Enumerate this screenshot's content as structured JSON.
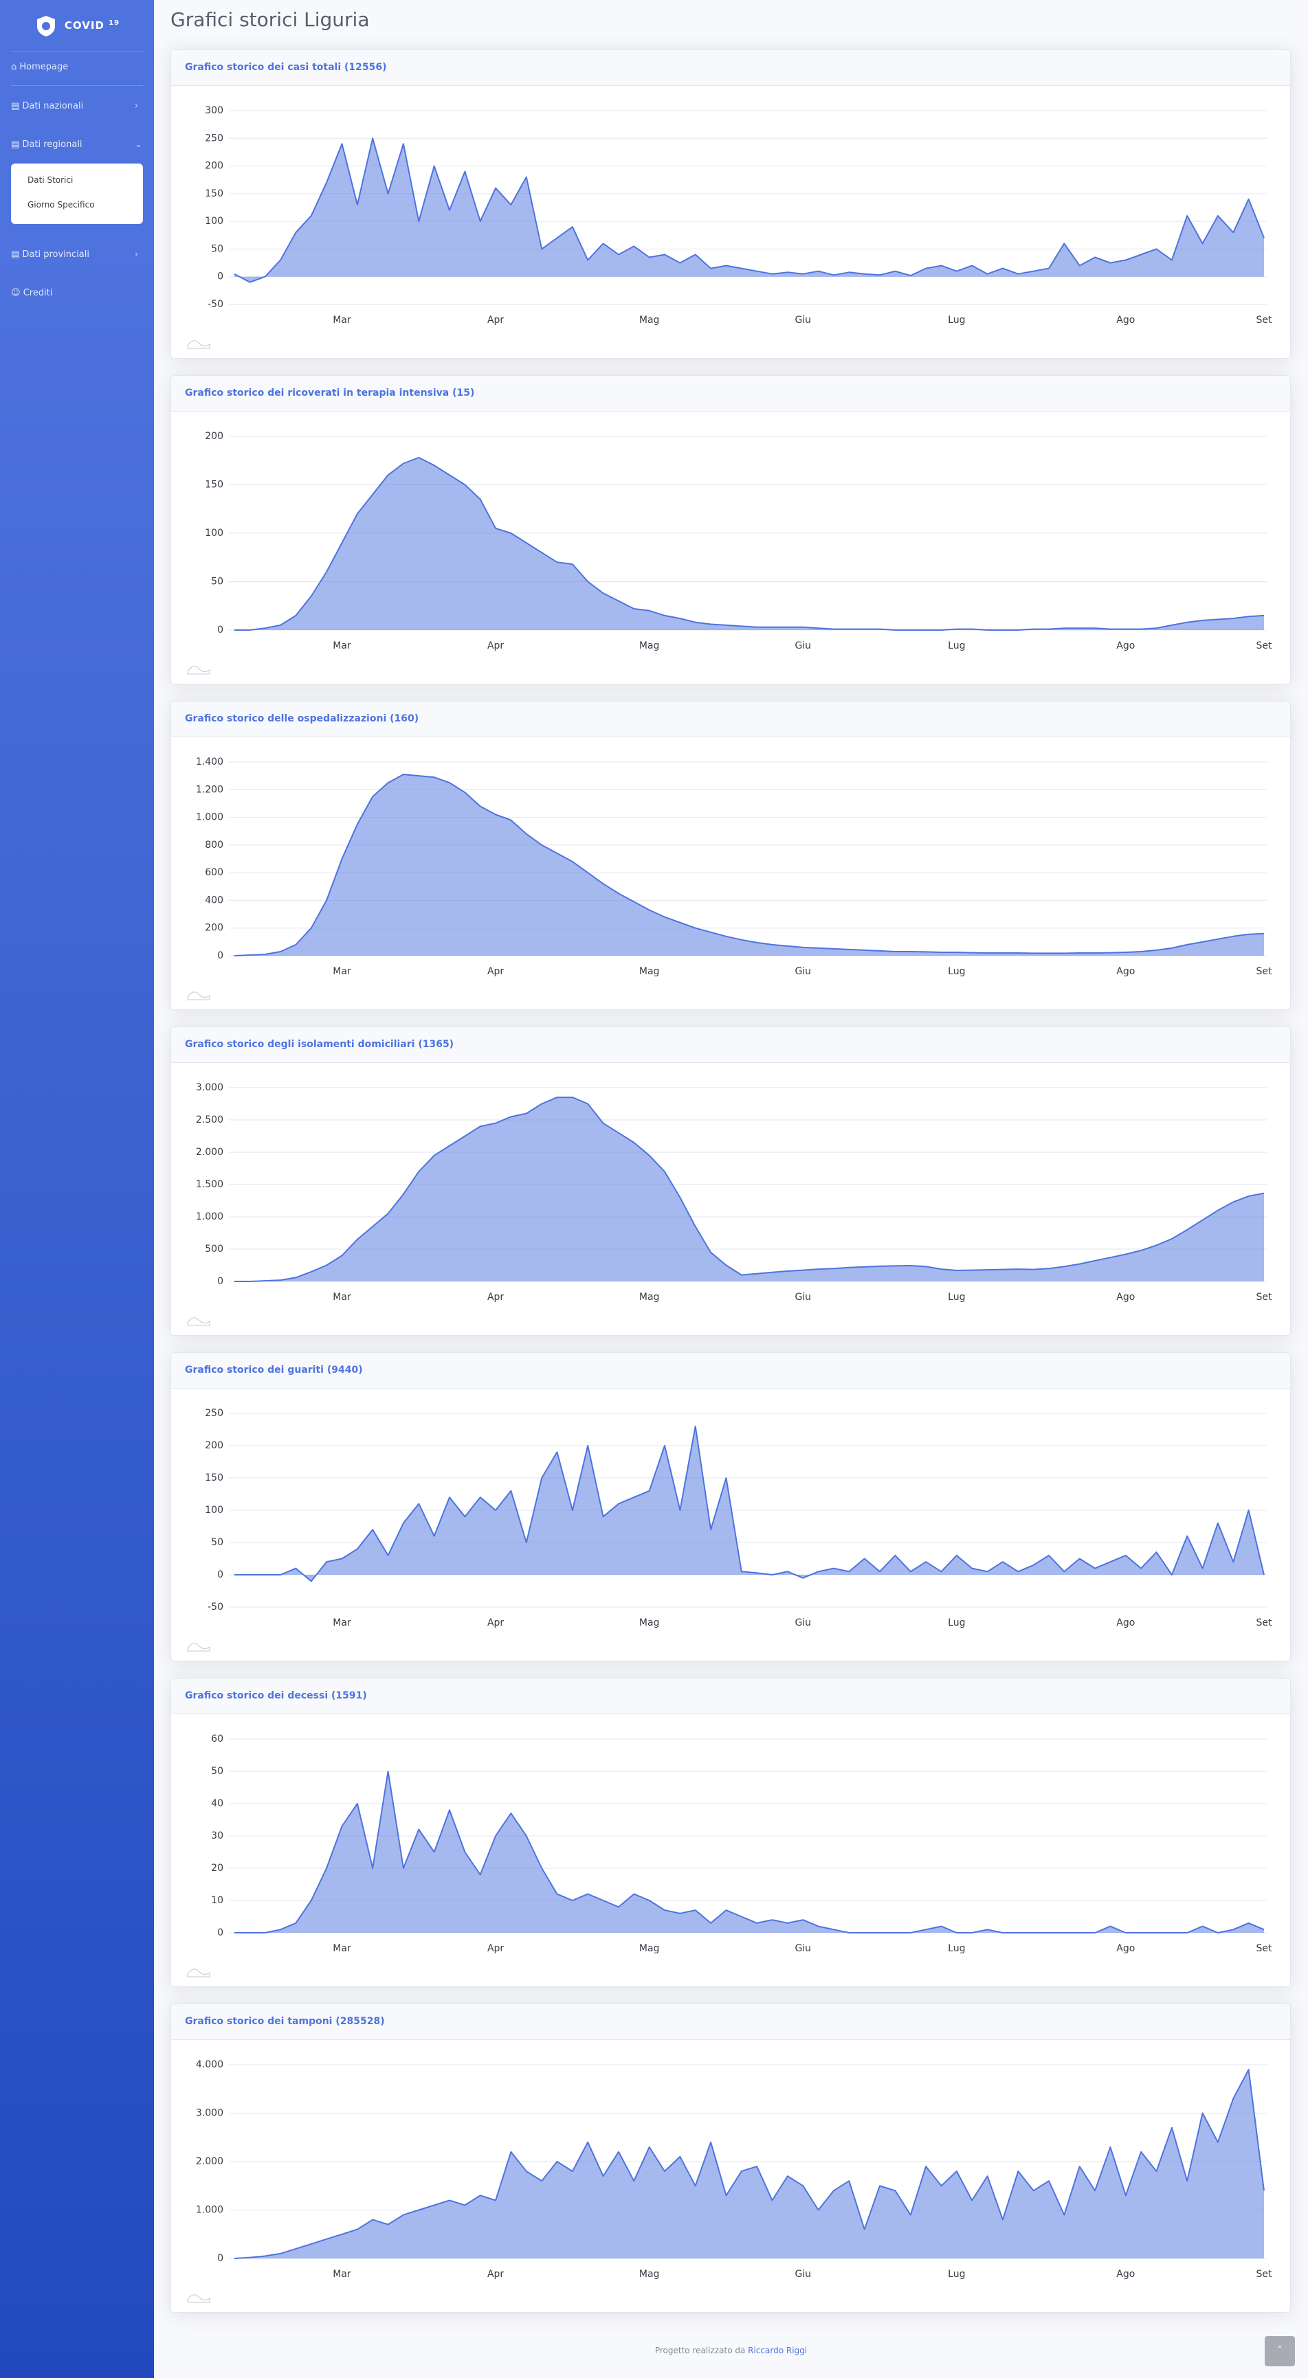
{
  "sidebar": {
    "brand": "COVID",
    "brand_sup": "19",
    "items": [
      "Homepage",
      "Dati nazionali",
      "Dati regionali"
    ],
    "submenu": [
      "Dati Storici",
      "Giorno Specifico"
    ],
    "items2": [
      "Dati provinciali",
      "Crediti"
    ]
  },
  "page_title": "Grafici storici Liguria",
  "footer": {
    "text": "Progetto realizzato da",
    "author": "Riccardo Riggi"
  },
  "chart_data": [
    {
      "type": "line",
      "title": "Grafico storico dei casi totali (12556)",
      "color": "#4e73df",
      "grid": true,
      "categories": [
        null,
        null,
        null,
        null,
        null,
        null,
        null,
        "Mar",
        null,
        null,
        null,
        null,
        null,
        null,
        null,
        null,
        null,
        "Apr",
        null,
        null,
        null,
        null,
        null,
        null,
        null,
        null,
        null,
        "Mag",
        null,
        null,
        null,
        null,
        null,
        null,
        null,
        null,
        null,
        "Giu",
        null,
        null,
        null,
        null,
        null,
        null,
        null,
        null,
        null,
        "Lug",
        null,
        null,
        null,
        null,
        null,
        null,
        null,
        null,
        null,
        null,
        "Ago",
        null,
        null,
        null,
        null,
        null,
        null,
        null,
        null,
        "Set"
      ],
      "values": [
        5,
        -10,
        0,
        30,
        80,
        110,
        170,
        240,
        130,
        250,
        150,
        240,
        100,
        200,
        120,
        190,
        100,
        160,
        130,
        180,
        50,
        70,
        90,
        30,
        60,
        40,
        55,
        35,
        40,
        25,
        40,
        15,
        20,
        15,
        10,
        5,
        8,
        5,
        10,
        3,
        8,
        5,
        3,
        10,
        2,
        15,
        20,
        10,
        20,
        5,
        15,
        5,
        10,
        15,
        60,
        20,
        35,
        25,
        30,
        40,
        50,
        30,
        110,
        60,
        110,
        80,
        140,
        70
      ],
      "ylim": [
        -50,
        300
      ],
      "yticks": [
        -50,
        0,
        50,
        100,
        150,
        200,
        250,
        300
      ]
    },
    {
      "type": "line",
      "title": "Grafico storico dei ricoverati in terapia intensiva (15)",
      "color": "#4e73df",
      "grid": true,
      "categories": [
        null,
        null,
        null,
        null,
        null,
        null,
        null,
        "Mar",
        null,
        null,
        null,
        null,
        null,
        null,
        null,
        null,
        null,
        "Apr",
        null,
        null,
        null,
        null,
        null,
        null,
        null,
        null,
        null,
        "Mag",
        null,
        null,
        null,
        null,
        null,
        null,
        null,
        null,
        null,
        "Giu",
        null,
        null,
        null,
        null,
        null,
        null,
        null,
        null,
        null,
        "Lug",
        null,
        null,
        null,
        null,
        null,
        null,
        null,
        null,
        null,
        null,
        "Ago",
        null,
        null,
        null,
        null,
        null,
        null,
        null,
        null,
        "Set"
      ],
      "values": [
        0,
        0,
        2,
        5,
        15,
        35,
        60,
        90,
        120,
        140,
        160,
        172,
        178,
        170,
        160,
        150,
        135,
        105,
        100,
        90,
        80,
        70,
        68,
        50,
        38,
        30,
        22,
        20,
        15,
        12,
        8,
        6,
        5,
        4,
        3,
        3,
        3,
        3,
        2,
        1,
        1,
        1,
        1,
        0,
        0,
        0,
        0,
        1,
        1,
        0,
        0,
        0,
        1,
        1,
        2,
        2,
        2,
        1,
        1,
        1,
        2,
        5,
        8,
        10,
        11,
        12,
        14,
        15
      ],
      "ylim": [
        0,
        200
      ],
      "yticks": [
        0,
        50,
        100,
        150,
        200
      ]
    },
    {
      "type": "line",
      "title": "Grafico storico delle ospedalizzazioni (160)",
      "color": "#4e73df",
      "grid": true,
      "categories": [
        null,
        null,
        null,
        null,
        null,
        null,
        null,
        "Mar",
        null,
        null,
        null,
        null,
        null,
        null,
        null,
        null,
        null,
        "Apr",
        null,
        null,
        null,
        null,
        null,
        null,
        null,
        null,
        null,
        "Mag",
        null,
        null,
        null,
        null,
        null,
        null,
        null,
        null,
        null,
        "Giu",
        null,
        null,
        null,
        null,
        null,
        null,
        null,
        null,
        null,
        "Lug",
        null,
        null,
        null,
        null,
        null,
        null,
        null,
        null,
        null,
        null,
        "Ago",
        null,
        null,
        null,
        null,
        null,
        null,
        null,
        null,
        "Set"
      ],
      "values": [
        0,
        5,
        10,
        30,
        80,
        200,
        400,
        700,
        950,
        1150,
        1250,
        1310,
        1300,
        1290,
        1250,
        1180,
        1080,
        1020,
        980,
        880,
        800,
        740,
        680,
        600,
        520,
        450,
        390,
        330,
        280,
        240,
        200,
        170,
        140,
        115,
        95,
        80,
        70,
        60,
        55,
        50,
        45,
        40,
        35,
        30,
        30,
        28,
        25,
        25,
        22,
        20,
        20,
        20,
        18,
        18,
        18,
        20,
        20,
        22,
        25,
        30,
        40,
        55,
        80,
        100,
        120,
        140,
        155,
        160
      ],
      "ylim": [
        0,
        1400
      ],
      "yticks": [
        0,
        200,
        400,
        600,
        800,
        {
          "value": 1000,
          "label": "1.000"
        },
        {
          "value": 1200,
          "label": "1.200"
        },
        {
          "value": 1400,
          "label": "1.400"
        }
      ]
    },
    {
      "type": "line",
      "title": "Grafico storico degli isolamenti domiciliari (1365)",
      "color": "#4e73df",
      "grid": true,
      "categories": [
        null,
        null,
        null,
        null,
        null,
        null,
        null,
        "Mar",
        null,
        null,
        null,
        null,
        null,
        null,
        null,
        null,
        null,
        "Apr",
        null,
        null,
        null,
        null,
        null,
        null,
        null,
        null,
        null,
        "Mag",
        null,
        null,
        null,
        null,
        null,
        null,
        null,
        null,
        null,
        "Giu",
        null,
        null,
        null,
        null,
        null,
        null,
        null,
        null,
        null,
        "Lug",
        null,
        null,
        null,
        null,
        null,
        null,
        null,
        null,
        null,
        null,
        "Ago",
        null,
        null,
        null,
        null,
        null,
        null,
        null,
        null,
        "Set"
      ],
      "values": [
        0,
        0,
        10,
        20,
        60,
        150,
        250,
        400,
        650,
        850,
        1050,
        1350,
        1700,
        1950,
        2100,
        2250,
        2400,
        2450,
        2550,
        2600,
        2750,
        2850,
        2850,
        2750,
        2450,
        2300,
        2150,
        1950,
        1700,
        1300,
        850,
        450,
        250,
        100,
        120,
        140,
        160,
        175,
        190,
        200,
        215,
        225,
        235,
        240,
        245,
        230,
        190,
        170,
        175,
        180,
        185,
        190,
        185,
        200,
        230,
        270,
        320,
        370,
        420,
        480,
        560,
        660,
        800,
        950,
        1100,
        1230,
        1320,
        1365
      ],
      "ylim": [
        0,
        3000
      ],
      "yticks": [
        0,
        500,
        {
          "value": 1000,
          "label": "1.000"
        },
        {
          "value": 1500,
          "label": "1.500"
        },
        {
          "value": 2000,
          "label": "2.000"
        },
        {
          "value": 2500,
          "label": "2.500"
        },
        {
          "value": 3000,
          "label": "3.000"
        }
      ]
    },
    {
      "type": "line",
      "title": "Grafico storico dei guariti (9440)",
      "color": "#4e73df",
      "grid": true,
      "categories": [
        null,
        null,
        null,
        null,
        null,
        null,
        null,
        "Mar",
        null,
        null,
        null,
        null,
        null,
        null,
        null,
        null,
        null,
        "Apr",
        null,
        null,
        null,
        null,
        null,
        null,
        null,
        null,
        null,
        "Mag",
        null,
        null,
        null,
        null,
        null,
        null,
        null,
        null,
        null,
        "Giu",
        null,
        null,
        null,
        null,
        null,
        null,
        null,
        null,
        null,
        "Lug",
        null,
        null,
        null,
        null,
        null,
        null,
        null,
        null,
        null,
        null,
        "Ago",
        null,
        null,
        null,
        null,
        null,
        null,
        null,
        null,
        "Set"
      ],
      "values": [
        0,
        0,
        0,
        0,
        10,
        -10,
        20,
        25,
        40,
        70,
        30,
        80,
        110,
        60,
        120,
        90,
        120,
        100,
        130,
        50,
        150,
        190,
        100,
        200,
        90,
        110,
        120,
        130,
        200,
        100,
        230,
        70,
        150,
        5,
        3,
        0,
        5,
        -5,
        5,
        10,
        5,
        25,
        5,
        30,
        5,
        20,
        5,
        30,
        10,
        5,
        20,
        5,
        15,
        30,
        5,
        25,
        10,
        20,
        30,
        10,
        35,
        0,
        60,
        10,
        80,
        20,
        100,
        0
      ],
      "ylim": [
        -50,
        250
      ],
      "yticks": [
        -50,
        0,
        50,
        100,
        150,
        200,
        250
      ]
    },
    {
      "type": "line",
      "title": "Grafico storico dei decessi (1591)",
      "color": "#4e73df",
      "grid": true,
      "categories": [
        null,
        null,
        null,
        null,
        null,
        null,
        null,
        "Mar",
        null,
        null,
        null,
        null,
        null,
        null,
        null,
        null,
        null,
        "Apr",
        null,
        null,
        null,
        null,
        null,
        null,
        null,
        null,
        null,
        "Mag",
        null,
        null,
        null,
        null,
        null,
        null,
        null,
        null,
        null,
        "Giu",
        null,
        null,
        null,
        null,
        null,
        null,
        null,
        null,
        null,
        "Lug",
        null,
        null,
        null,
        null,
        null,
        null,
        null,
        null,
        null,
        null,
        "Ago",
        null,
        null,
        null,
        null,
        null,
        null,
        null,
        null,
        "Set"
      ],
      "values": [
        0,
        0,
        0,
        1,
        3,
        10,
        20,
        33,
        40,
        20,
        50,
        20,
        32,
        25,
        38,
        25,
        18,
        30,
        37,
        30,
        20,
        12,
        10,
        12,
        10,
        8,
        12,
        10,
        7,
        6,
        7,
        3,
        7,
        5,
        3,
        4,
        3,
        4,
        2,
        1,
        0,
        0,
        0,
        0,
        0,
        1,
        2,
        0,
        0,
        1,
        0,
        0,
        0,
        0,
        0,
        0,
        0,
        2,
        0,
        0,
        0,
        0,
        0,
        2,
        0,
        1,
        3,
        1
      ],
      "ylim": [
        0,
        60
      ],
      "yticks": [
        0,
        10,
        20,
        30,
        40,
        50,
        60
      ]
    },
    {
      "type": "line",
      "title": "Grafico storico dei tamponi (285528)",
      "color": "#4e73df",
      "grid": true,
      "categories": [
        null,
        null,
        null,
        null,
        null,
        null,
        null,
        "Mar",
        null,
        null,
        null,
        null,
        null,
        null,
        null,
        null,
        null,
        "Apr",
        null,
        null,
        null,
        null,
        null,
        null,
        null,
        null,
        null,
        "Mag",
        null,
        null,
        null,
        null,
        null,
        null,
        null,
        null,
        null,
        "Giu",
        null,
        null,
        null,
        null,
        null,
        null,
        null,
        null,
        null,
        "Lug",
        null,
        null,
        null,
        null,
        null,
        null,
        null,
        null,
        null,
        null,
        "Ago",
        null,
        null,
        null,
        null,
        null,
        null,
        null,
        null,
        "Set"
      ],
      "values": [
        0,
        20,
        50,
        100,
        200,
        300,
        400,
        500,
        600,
        800,
        700,
        900,
        1000,
        1100,
        1200,
        1100,
        1300,
        1200,
        2200,
        1800,
        1600,
        2000,
        1800,
        2400,
        1700,
        2200,
        1600,
        2300,
        1800,
        2100,
        1500,
        2400,
        1300,
        1800,
        1900,
        1200,
        1700,
        1500,
        1000,
        1400,
        1600,
        600,
        1500,
        1400,
        900,
        1900,
        1500,
        1800,
        1200,
        1700,
        800,
        1800,
        1400,
        1600,
        900,
        1900,
        1400,
        2300,
        1300,
        2200,
        1800,
        2700,
        1600,
        3000,
        2400,
        3300,
        3900,
        1400
      ],
      "ylim": [
        0,
        4000
      ],
      "yticks": [
        0,
        {
          "value": 1000,
          "label": "1.000"
        },
        {
          "value": 2000,
          "label": "2.000"
        },
        {
          "value": 3000,
          "label": "3.000"
        },
        {
          "value": 4000,
          "label": "4.000"
        }
      ]
    }
  ]
}
